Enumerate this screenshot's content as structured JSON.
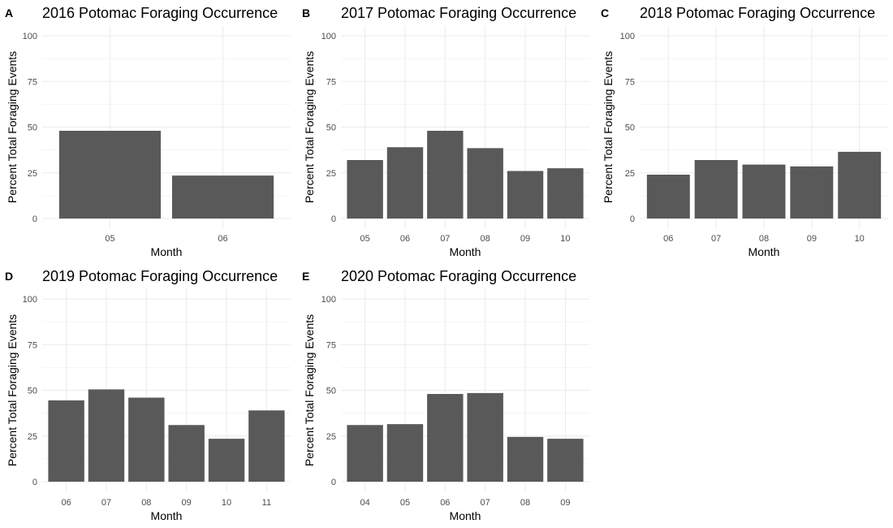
{
  "colors": {
    "bar": "#595959",
    "grid_major": "#ebebeb",
    "grid_minor": "#f5f5f5",
    "tick_text": "#4d4d4d",
    "text": "#000000"
  },
  "chart_data": [
    {
      "panel_label": "A",
      "type": "bar",
      "title": "2016 Potomac Foraging Occurrence",
      "xlabel": "Month",
      "ylabel": "Percent Total Foraging Events",
      "ylim": [
        0,
        100
      ],
      "yticks": [
        "0",
        "25",
        "50",
        "75",
        "100"
      ],
      "categories": [
        "05",
        "06"
      ],
      "values": [
        48,
        23.5
      ],
      "grid": true
    },
    {
      "panel_label": "B",
      "type": "bar",
      "title": "2017 Potomac Foraging Occurrence",
      "xlabel": "Month",
      "ylabel": "Percent Total Foraging Events",
      "ylim": [
        0,
        100
      ],
      "yticks": [
        "0",
        "25",
        "50",
        "75",
        "100"
      ],
      "categories": [
        "05",
        "06",
        "07",
        "08",
        "09",
        "10"
      ],
      "values": [
        32,
        39,
        48,
        38.5,
        26,
        27.5
      ],
      "grid": true
    },
    {
      "panel_label": "C",
      "type": "bar",
      "title": "2018 Potomac Foraging Occurrence",
      "xlabel": "Month",
      "ylabel": "Percent Total Foraging Events",
      "ylim": [
        0,
        100
      ],
      "yticks": [
        "0",
        "25",
        "50",
        "75",
        "100"
      ],
      "categories": [
        "06",
        "07",
        "08",
        "09",
        "10"
      ],
      "values": [
        24,
        32,
        29.5,
        28.5,
        36.5
      ],
      "grid": true
    },
    {
      "panel_label": "D",
      "type": "bar",
      "title": "2019 Potomac Foraging Occurrence",
      "xlabel": "Month",
      "ylabel": "Percent Total Foraging Events",
      "ylim": [
        0,
        100
      ],
      "yticks": [
        "0",
        "25",
        "50",
        "75",
        "100"
      ],
      "categories": [
        "06",
        "07",
        "08",
        "09",
        "10",
        "11"
      ],
      "values": [
        44.5,
        50.5,
        46,
        31,
        23.5,
        39
      ],
      "grid": true
    },
    {
      "panel_label": "E",
      "type": "bar",
      "title": "2020 Potomac Foraging Occurrence",
      "xlabel": "Month",
      "ylabel": "Percent Total Foraging Events",
      "ylim": [
        0,
        100
      ],
      "yticks": [
        "0",
        "25",
        "50",
        "75",
        "100"
      ],
      "categories": [
        "04",
        "05",
        "06",
        "07",
        "08",
        "09"
      ],
      "values": [
        31,
        31.5,
        48,
        48.5,
        24.5,
        23.5
      ],
      "grid": true
    }
  ]
}
